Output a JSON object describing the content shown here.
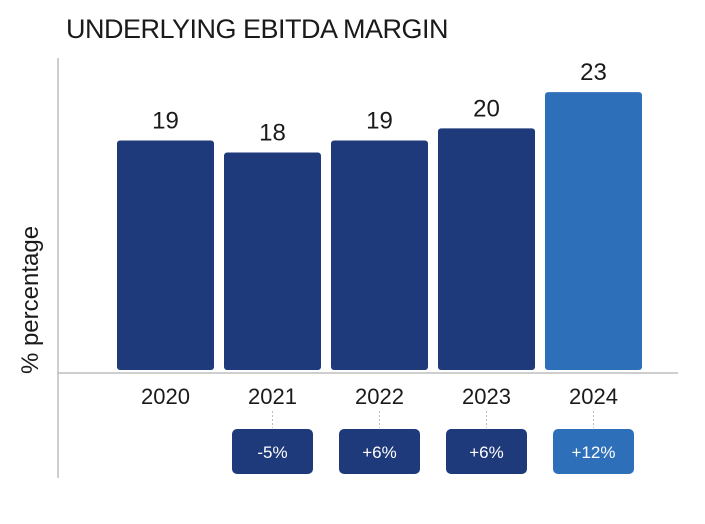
{
  "chart_data": {
    "type": "bar",
    "title": "UNDERLYING EBITDA MARGIN",
    "ylabel": "% percentage",
    "xlabel": "",
    "categories": [
      "2020",
      "2021",
      "2022",
      "2023",
      "2024"
    ],
    "values": [
      19,
      18,
      19,
      20,
      23
    ],
    "value_labels": [
      "19",
      "18",
      "19",
      "20",
      "23"
    ],
    "ylim": [
      0,
      25
    ],
    "grid": false,
    "changes": [
      "",
      "-5%",
      "+6%",
      "+6%",
      "+12%"
    ],
    "colors": {
      "bar": "#1f3a7a",
      "bar_highlight": "#2e6fba",
      "axis": "#bdbdbd",
      "connector": "#bdbdbd"
    },
    "highlight_index": 4
  }
}
